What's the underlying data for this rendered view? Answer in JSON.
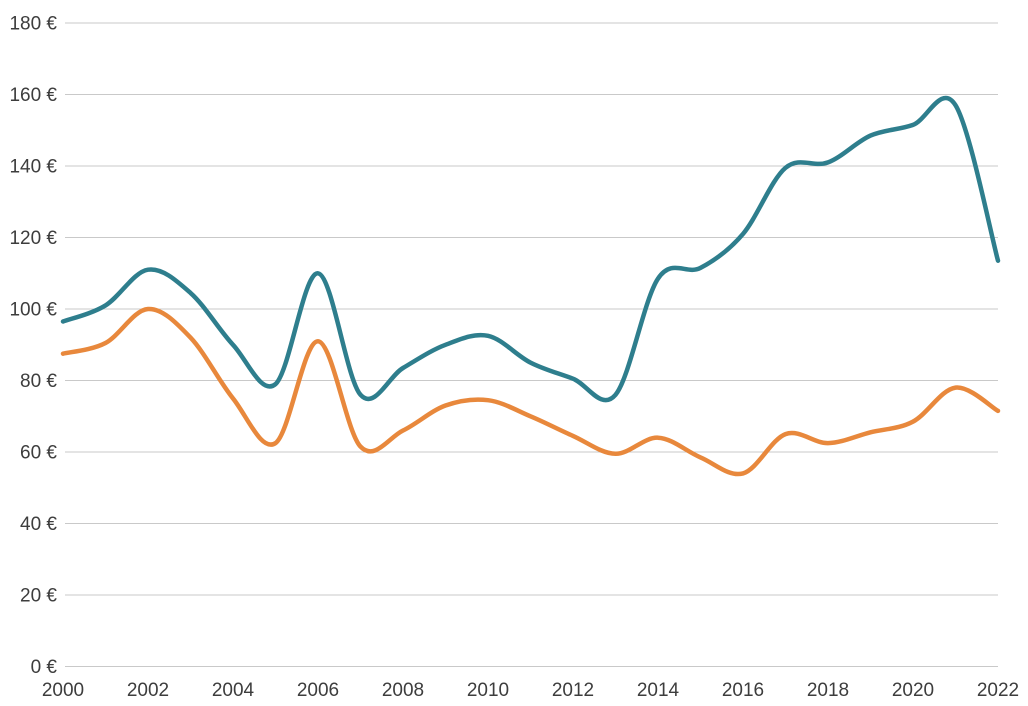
{
  "chart_data": {
    "type": "line",
    "title": "",
    "xlabel": "",
    "ylabel": "",
    "x": [
      2000,
      2001,
      2002,
      2003,
      2004,
      2005,
      2006,
      2007,
      2008,
      2009,
      2010,
      2011,
      2012,
      2013,
      2014,
      2015,
      2016,
      2017,
      2018,
      2019,
      2020,
      2021,
      2022
    ],
    "series": [
      {
        "name": "teal",
        "color": "#2e7e8d",
        "values": [
          96.5,
          101,
          111,
          104.5,
          90,
          79,
          110,
          76,
          83.5,
          90,
          92.5,
          85,
          80.5,
          76,
          108.5,
          111.5,
          121,
          139.5,
          141,
          148.5,
          151.5,
          157,
          113.5
        ]
      },
      {
        "name": "orange",
        "color": "#e8883c",
        "values": [
          87.5,
          90.5,
          100,
          92,
          75,
          62.5,
          91,
          61.5,
          66,
          73,
          74.5,
          70,
          64.5,
          59.5,
          64,
          58.5,
          54,
          65,
          62.5,
          65.5,
          68.5,
          78,
          71.5
        ]
      }
    ],
    "xlim": [
      2000,
      2022
    ],
    "ylim": [
      0,
      180
    ],
    "x_ticks": [
      2000,
      2002,
      2004,
      2006,
      2008,
      2010,
      2012,
      2014,
      2016,
      2018,
      2020,
      2022
    ],
    "y_ticks": [
      0,
      20,
      40,
      60,
      80,
      100,
      120,
      140,
      160,
      180
    ],
    "y_tick_suffix": " €",
    "grid": "horizontal",
    "legend": "none",
    "curve": "smooth"
  },
  "style": {
    "background_color": "#ffffff",
    "grid_color": "#c9c9c9",
    "label_color": "#3d3d3d",
    "line_width": 4.5,
    "tick_font_size": 19
  }
}
